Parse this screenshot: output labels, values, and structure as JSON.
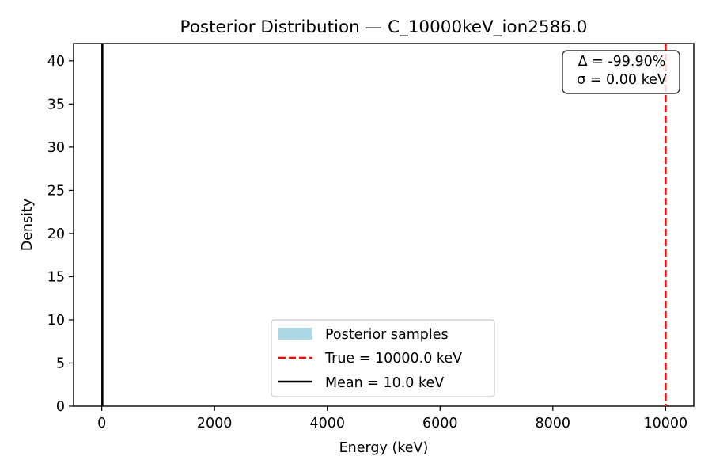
{
  "chart_data": {
    "type": "histogram",
    "title": "Posterior Distribution — C_10000keV_ion2586.0",
    "xlabel": "Energy (keV)",
    "ylabel": "Density",
    "xlim": [
      -500,
      10500
    ],
    "ylim": [
      0,
      42
    ],
    "xticks": [
      0,
      2000,
      4000,
      6000,
      8000,
      10000
    ],
    "yticks": [
      0,
      5,
      10,
      15,
      20,
      25,
      30,
      35,
      40
    ],
    "grid": false,
    "series": [
      {
        "name": "Posterior samples",
        "kind": "histogram",
        "color": "#add8e6",
        "x": [
          10.0
        ],
        "values": [
          0
        ]
      },
      {
        "name": "True = 10000.0 keV",
        "kind": "vline",
        "x": 10000.0,
        "color": "#ff0000",
        "linestyle": "dashed"
      },
      {
        "name": "Mean = 10.0 keV",
        "kind": "vline",
        "x": 10.0,
        "color": "#000000",
        "linestyle": "solid"
      }
    ],
    "legend": {
      "location": "lower-center",
      "entries": [
        "Posterior samples",
        "True = 10000.0 keV",
        "Mean = 10.0 keV"
      ]
    },
    "annotation": {
      "location": "top-right",
      "lines": [
        "Δ = -99.90%",
        "σ = 0.00 keV"
      ]
    }
  }
}
